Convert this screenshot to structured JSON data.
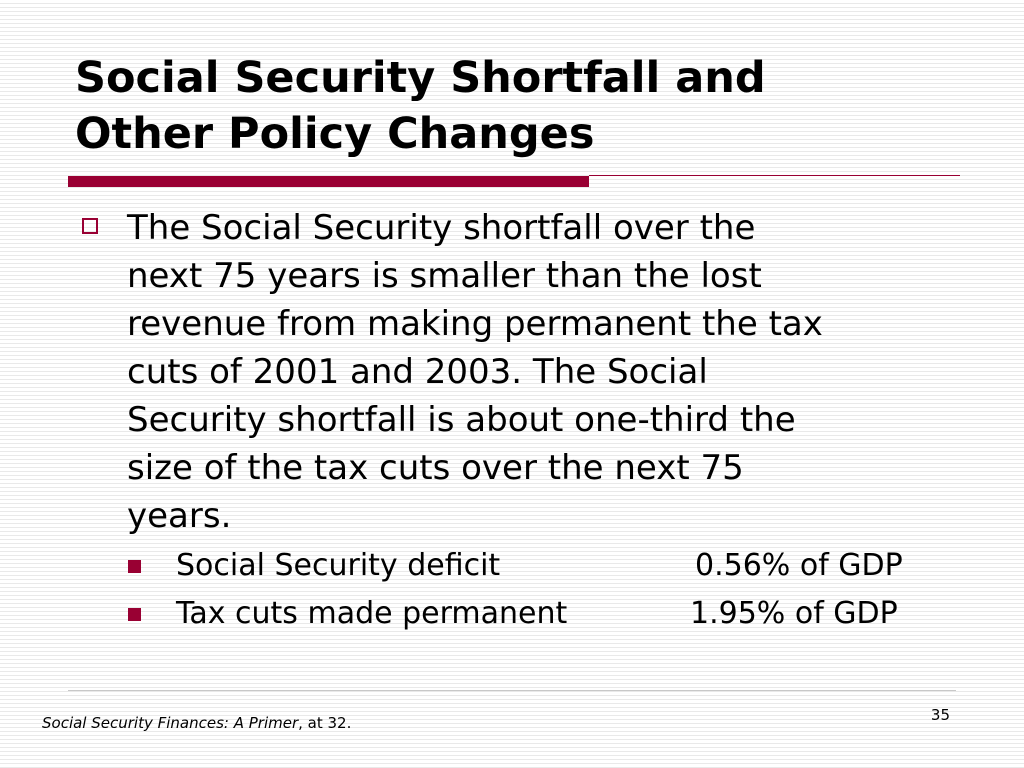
{
  "slide": {
    "title_lines": [
      "Social Security Shortfall and",
      "Other Policy Changes"
    ],
    "bullet_lines": [
      "The Social Security shortfall over the",
      "next 75 years is smaller than the lost",
      "revenue from making permanent the tax",
      "cuts of 2001 and 2003.  The Social",
      "Security shortfall is about one-third the",
      "size of the tax cuts over the next 75",
      "years."
    ],
    "sub_items": [
      {
        "label": "Social Security deficit",
        "value": "0.56% of GDP"
      },
      {
        "label": "Tax cuts made permanent",
        "value": "1.95% of GDP"
      }
    ],
    "footer": {
      "source_italic": "Social Security Finances:  A Primer",
      "source_rest": ", at 32."
    },
    "slide_number": "35",
    "colors": {
      "accent": "#990033",
      "background_stripe": "#e9e9e9",
      "text": "#000000"
    }
  }
}
